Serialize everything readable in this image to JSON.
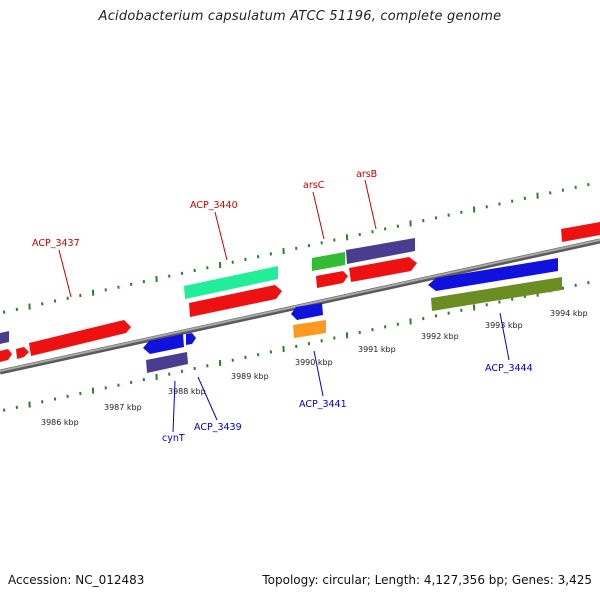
{
  "title": "Acidobacterium capsulatum ATCC 51196, complete genome",
  "footer": {
    "accession": "Accession: NC_012483",
    "topology": "Topology: circular; Length: 4,127,356 bp; Genes: 3,425"
  },
  "colors": {
    "plus_label": "#cc0000",
    "minus_label": "#0000cc",
    "backbone": "#8a8a8a",
    "tick": "#2e7d2e"
  },
  "ruler": [
    {
      "text": "3986 kbp",
      "kb": 3986
    },
    {
      "text": "3987 kbp",
      "kb": 3987
    },
    {
      "text": "3988 kbp",
      "kb": 3988
    },
    {
      "text": "3989 kbp",
      "kb": 3989
    },
    {
      "text": "3990 kbp",
      "kb": 3990
    },
    {
      "text": "3991 kbp",
      "kb": 3991
    },
    {
      "text": "3992 kbp",
      "kb": 3992
    },
    {
      "text": "3993 kbp",
      "kb": 3993
    },
    {
      "text": "3994 kbp",
      "kb": 3994
    }
  ],
  "genes": [
    {
      "name": "ACP_3437",
      "strand": "+",
      "color": "#ee1111",
      "label_color": "#cc0000"
    },
    {
      "name": "ACP_3440",
      "strand": "+",
      "color": "#ee1111",
      "label_color": "#cc0000"
    },
    {
      "name": "arsC",
      "strand": "+",
      "color": "#ee1111",
      "label_color": "#cc0000"
    },
    {
      "name": "arsB",
      "strand": "+",
      "color": "#ee1111",
      "label_color": "#cc0000"
    },
    {
      "name": "cynT",
      "strand": "-",
      "color": "#1111dd",
      "label_color": "#0000cc"
    },
    {
      "name": "ACP_3439",
      "strand": "-",
      "color": "#1111dd",
      "label_color": "#0000cc"
    },
    {
      "name": "ACP_3441",
      "strand": "-",
      "color": "#1111dd",
      "label_color": "#0000cc"
    },
    {
      "name": "ACP_3444",
      "strand": "-",
      "color": "#1111dd",
      "label_color": "#0000cc"
    }
  ]
}
